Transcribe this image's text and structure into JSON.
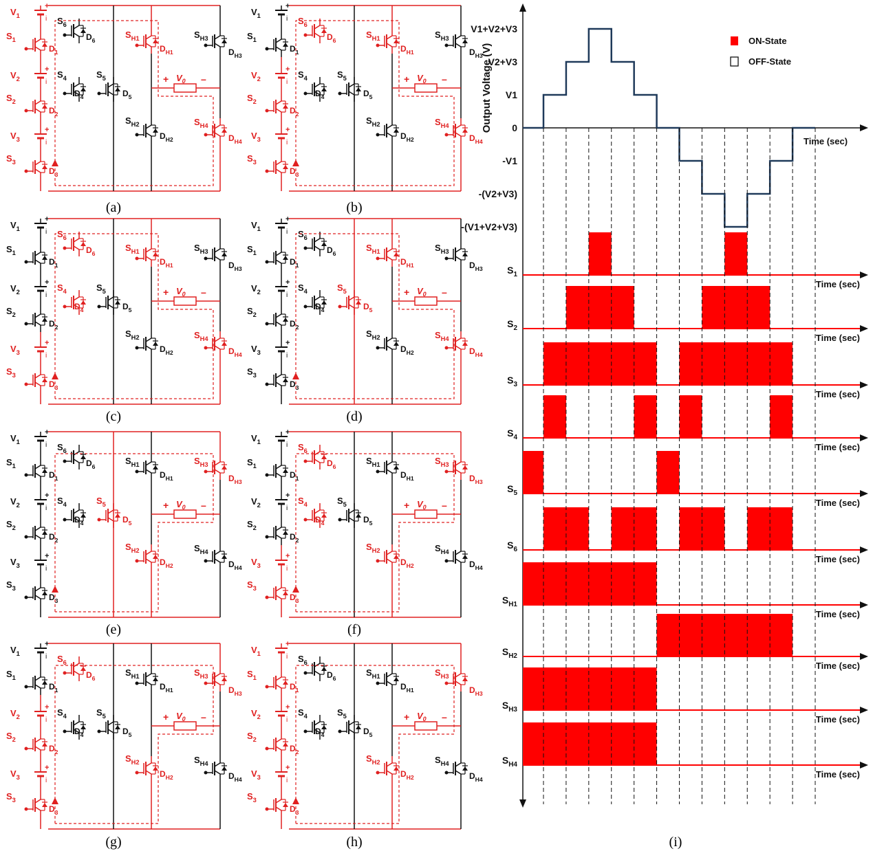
{
  "captions": [
    "(a)",
    "(b)",
    "(c)",
    "(d)",
    "(e)",
    "(f)",
    "(g)",
    "(h)",
    "(i)"
  ],
  "panels": [
    {
      "id": "a",
      "caption": "(a)",
      "active": [
        "V1",
        "V2",
        "V3",
        "S1",
        "S2",
        "S3",
        "D1",
        "D2",
        "D3",
        "SH1",
        "DH1",
        "SH4",
        "DH4"
      ],
      "vo": "V0"
    },
    {
      "id": "b",
      "caption": "(b)",
      "active": [
        "V2",
        "V3",
        "S2",
        "S3",
        "D2",
        "D3",
        "S6",
        "D6",
        "SH1",
        "DH1",
        "SH4",
        "DH4"
      ],
      "vo": "V0"
    },
    {
      "id": "c",
      "caption": "(c)",
      "active": [
        "V3",
        "S3",
        "D3",
        "S6",
        "D6",
        "S4",
        "D4",
        "SH1",
        "DH1",
        "SH4",
        "DH4"
      ],
      "vo": "V0"
    },
    {
      "id": "d",
      "caption": "(d)",
      "active": [
        "S5",
        "D5",
        "SH1",
        "DH1",
        "SH4",
        "DH4"
      ],
      "vo": "V0"
    },
    {
      "id": "e",
      "caption": "(e)",
      "active": [
        "S5",
        "D5",
        "SH2",
        "DH2",
        "SH3",
        "DH3"
      ],
      "vo": "V0"
    },
    {
      "id": "f",
      "caption": "(f)",
      "active": [
        "V3",
        "S3",
        "D3",
        "S6",
        "D6",
        "S4",
        "D4",
        "SH2",
        "DH2",
        "SH3",
        "DH3"
      ],
      "vo": "V0"
    },
    {
      "id": "g",
      "caption": "(g)",
      "active": [
        "V2",
        "V3",
        "S2",
        "S3",
        "D2",
        "D3",
        "S6",
        "D6",
        "SH2",
        "DH2",
        "SH3",
        "DH3"
      ],
      "vo": "V0"
    },
    {
      "id": "h",
      "caption": "(h)",
      "active": [
        "V1",
        "V2",
        "V3",
        "S1",
        "S2",
        "S3",
        "D1",
        "D2",
        "D3",
        "SH2",
        "DH2",
        "SH3",
        "DH3"
      ],
      "vo": "V0"
    }
  ],
  "timing": {
    "ylabel": "Output Voltage (V)",
    "xlabel": "Time (sec)",
    "levels": [
      "V1+V2+V3",
      "V2+V3",
      "V1",
      "0",
      "-V1",
      "-(V2+V3)",
      "-(V1+V2+V3)"
    ],
    "legend": {
      "on": "ON-State",
      "off": "OFF-State",
      "on_color": "#ff0000"
    },
    "voltage_steps": [
      0,
      0,
      1,
      2,
      3,
      2,
      1,
      0,
      0,
      -1,
      -2,
      -3,
      -2,
      -1,
      0,
      0
    ],
    "switch_colors": {
      "line": "#ff0000",
      "fill": "#ff0000",
      "waveform": "#1f3a5a"
    },
    "switches": [
      {
        "name": "S1",
        "on": [
          [
            3,
            4
          ],
          [
            9,
            10
          ]
        ]
      },
      {
        "name": "S2",
        "on": [
          [
            2,
            5
          ],
          [
            8,
            11
          ]
        ]
      },
      {
        "name": "S3",
        "on": [
          [
            1,
            6
          ],
          [
            7,
            12
          ]
        ]
      },
      {
        "name": "S4",
        "on": [
          [
            1,
            2
          ],
          [
            5,
            6
          ],
          [
            7,
            8
          ],
          [
            11,
            12
          ]
        ]
      },
      {
        "name": "S5",
        "on": [
          [
            0,
            1
          ],
          [
            6,
            7
          ]
        ]
      },
      {
        "name": "S6",
        "on": [
          [
            1,
            3
          ],
          [
            4,
            6
          ],
          [
            7,
            9
          ],
          [
            10,
            12
          ]
        ]
      },
      {
        "name": "SH1",
        "on": [
          [
            0,
            6
          ]
        ]
      },
      {
        "name": "SH2",
        "on": [
          [
            6,
            12
          ]
        ]
      },
      {
        "name": "SH3",
        "on": [
          [
            0,
            6
          ]
        ]
      },
      {
        "name": "SH4",
        "on": [
          [
            0,
            6
          ]
        ]
      }
    ]
  }
}
